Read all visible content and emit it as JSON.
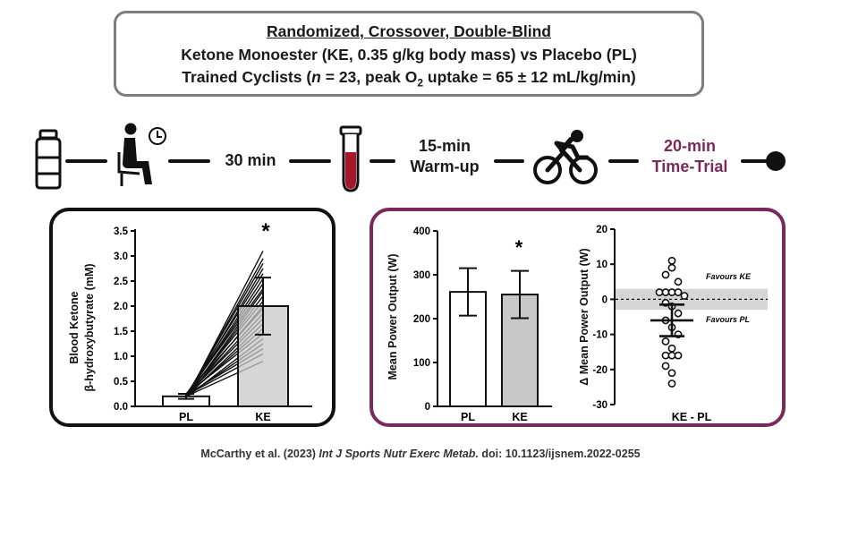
{
  "header": {
    "line1": "Randomized, Crossover, Double-Blind",
    "line2": "Ketone Monoester (KE, 0.35 g/kg body mass) vs Placebo (PL)",
    "line3_prefix": "Trained Cyclists (",
    "line3_n": "n",
    "line3_mid": " = 23, peak O",
    "line3_sub": "2",
    "line3_suffix": " uptake = 65 ± 12 mL/kg/min)"
  },
  "protocol": {
    "icons": [
      "bottle-icon",
      "seated-person-clock-icon",
      "blood-tube-icon",
      "cyclist-icon",
      "end-dot-icon"
    ],
    "step_30min": "30 min",
    "warmup_line1": "15-min",
    "warmup_line2": "Warm-up",
    "trial_line1": "20-min",
    "trial_line2": "Time-Trial",
    "trial_color": "#7a2a5a"
  },
  "colors": {
    "ke_bar": "#c8c8c8",
    "pl_bar": "#ffffff",
    "band": "#d6d6d6",
    "right_border": "#7a2a5a"
  },
  "chart_data": [
    {
      "type": "bar",
      "title": "",
      "xlabel": "",
      "ylabel_line1": "Blood Ketone",
      "ylabel_line2": "β-hydroxybutyrate (mM)",
      "categories": [
        "PL",
        "KE"
      ],
      "values": [
        0.2,
        2.0
      ],
      "errors": [
        0.05,
        0.57
      ],
      "ylim": [
        0,
        3.5
      ],
      "yticks": [
        "0.0",
        "0.5",
        "1.0",
        "1.5",
        "2.0",
        "2.5",
        "3.0",
        "3.5"
      ],
      "significance": "*",
      "individual_pairs": [
        [
          0.15,
          3.1
        ],
        [
          0.18,
          2.95
        ],
        [
          0.2,
          2.85
        ],
        [
          0.16,
          2.75
        ],
        [
          0.22,
          2.65
        ],
        [
          0.19,
          2.55
        ],
        [
          0.21,
          2.45
        ],
        [
          0.24,
          2.35
        ],
        [
          0.17,
          2.3
        ],
        [
          0.2,
          2.2
        ],
        [
          0.23,
          2.1
        ],
        [
          0.18,
          2.0
        ],
        [
          0.25,
          1.95
        ],
        [
          0.2,
          1.85
        ],
        [
          0.22,
          1.75
        ],
        [
          0.19,
          1.65
        ],
        [
          0.21,
          1.55
        ],
        [
          0.24,
          1.45
        ],
        [
          0.18,
          1.35
        ],
        [
          0.2,
          1.25
        ],
        [
          0.23,
          1.15
        ],
        [
          0.22,
          1.05
        ],
        [
          0.2,
          0.9
        ]
      ]
    },
    {
      "type": "bar",
      "title": "",
      "xlabel": "",
      "ylabel": "Mean Power Output (W)",
      "categories": [
        "PL",
        "KE"
      ],
      "values": [
        261,
        255
      ],
      "errors": [
        54,
        54
      ],
      "ylim": [
        0,
        400
      ],
      "yticks": [
        "0",
        "100",
        "200",
        "300",
        "400"
      ],
      "significance": "*"
    },
    {
      "type": "scatter",
      "title": "",
      "ylabel": "Δ Mean Power Output (W)",
      "xlabel": "KE - PL",
      "ylim": [
        -30,
        20
      ],
      "yticks": [
        "-30",
        "-20",
        "-10",
        "0",
        "10",
        "20"
      ],
      "mean": -6,
      "sem": 4.5,
      "band": [
        -3,
        3
      ],
      "label_upper": "Favours KE",
      "label_lower": "Favours PL",
      "points": [
        {
          "dx": 0,
          "y": 11
        },
        {
          "dx": 0,
          "y": 9
        },
        {
          "dx": -1,
          "y": 7
        },
        {
          "dx": 1,
          "y": 5
        },
        {
          "dx": -2,
          "y": 2
        },
        {
          "dx": -1,
          "y": 2
        },
        {
          "dx": 0,
          "y": 2
        },
        {
          "dx": 1,
          "y": 2
        },
        {
          "dx": 2,
          "y": 1
        },
        {
          "dx": -1,
          "y": -1
        },
        {
          "dx": 0,
          "y": -2
        },
        {
          "dx": 1,
          "y": -4
        },
        {
          "dx": -1,
          "y": -6
        },
        {
          "dx": 0,
          "y": -8
        },
        {
          "dx": 1,
          "y": -10
        },
        {
          "dx": -1,
          "y": -12
        },
        {
          "dx": 0,
          "y": -14
        },
        {
          "dx": -1,
          "y": -16
        },
        {
          "dx": 0,
          "y": -16
        },
        {
          "dx": 1,
          "y": -16
        },
        {
          "dx": -1,
          "y": -19
        },
        {
          "dx": 0,
          "y": -21
        },
        {
          "dx": 0,
          "y": -24
        }
      ]
    }
  ],
  "citation": {
    "prefix": "McCarthy et al. (2023) ",
    "journal": "Int J Sports Nutr Exerc Metab.",
    "suffix": " doi: 10.1123/ijsnem.2022-0255"
  }
}
